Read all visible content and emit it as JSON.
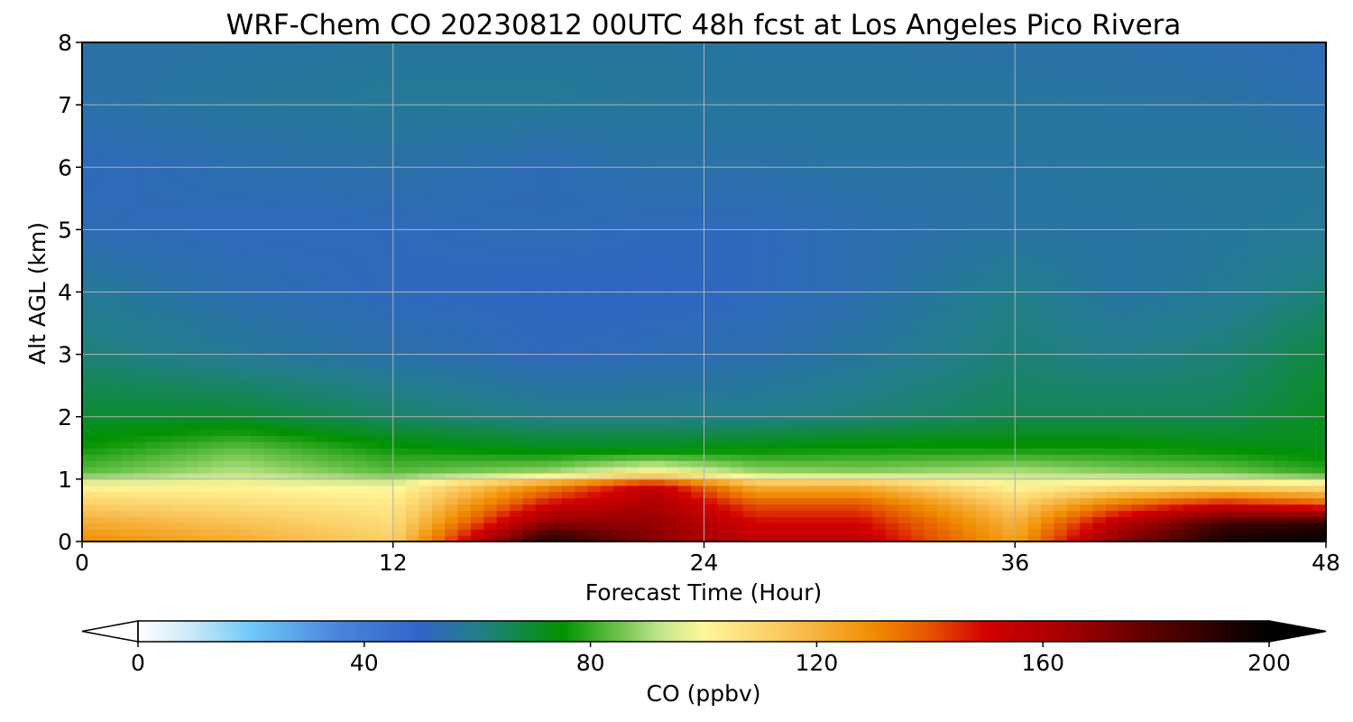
{
  "chart_data": {
    "type": "heatmap",
    "title": "WRF-Chem CO  20230812 00UTC 48h fcst at Los Angeles Pico Rivera",
    "xlabel": "Forecast Time (Hour)",
    "ylabel": "Alt AGL (km)",
    "xlim": [
      0,
      48
    ],
    "ylim": [
      0,
      8
    ],
    "x_ticks": [
      0,
      12,
      24,
      36,
      48
    ],
    "y_ticks": [
      0,
      1,
      2,
      3,
      4,
      5,
      6,
      7,
      8
    ],
    "grid": true,
    "x": [
      0,
      6,
      12,
      18,
      22,
      26,
      30,
      36,
      40,
      44,
      48
    ],
    "y": [
      0,
      0.3,
      0.6,
      0.9,
      1.1,
      1.5,
      2.0,
      3.0,
      4.0,
      5.0,
      6.0,
      7.0,
      8.0
    ],
    "z": [
      [
        130,
        122,
        112,
        195,
        170,
        155,
        155,
        125,
        170,
        195,
        200
      ],
      [
        122,
        116,
        108,
        170,
        168,
        150,
        150,
        120,
        158,
        185,
        190
      ],
      [
        112,
        108,
        104,
        150,
        162,
        140,
        140,
        112,
        135,
        150,
        140
      ],
      [
        100,
        100,
        98,
        130,
        155,
        120,
        120,
        100,
        105,
        108,
        105
      ],
      [
        84,
        92,
        84,
        90,
        102,
        90,
        88,
        92,
        88,
        86,
        80
      ],
      [
        76,
        84,
        76,
        72,
        72,
        74,
        76,
        76,
        76,
        74,
        72
      ],
      [
        70,
        70,
        64,
        60,
        60,
        60,
        62,
        66,
        66,
        66,
        72
      ],
      [
        62,
        58,
        55,
        52,
        53,
        54,
        57,
        62,
        60,
        62,
        68
      ],
      [
        58,
        54,
        52,
        51,
        51,
        52,
        54,
        60,
        56,
        58,
        62
      ],
      [
        53,
        52,
        52,
        53,
        52,
        52,
        54,
        56,
        56,
        57,
        58
      ],
      [
        52,
        54,
        55,
        53,
        55,
        55,
        56,
        56,
        57,
        57,
        57
      ],
      [
        55,
        57,
        58,
        58,
        57,
        57,
        57,
        57,
        56,
        56,
        54
      ],
      [
        55,
        56,
        57,
        57,
        57,
        56,
        56,
        55,
        55,
        54,
        53
      ]
    ],
    "colorbar": {
      "label": "CO  (ppbv)",
      "min": 0,
      "max": 200,
      "ticks": [
        0,
        40,
        80,
        120,
        160,
        200
      ],
      "extend": "both",
      "colors": [
        {
          "v": 0,
          "c": "#ffffff"
        },
        {
          "v": 10,
          "c": "#c8e6f8"
        },
        {
          "v": 20,
          "c": "#6ec8f7"
        },
        {
          "v": 35,
          "c": "#4a86dd"
        },
        {
          "v": 50,
          "c": "#3264c8"
        },
        {
          "v": 60,
          "c": "#227f8a"
        },
        {
          "v": 75,
          "c": "#009200"
        },
        {
          "v": 85,
          "c": "#6cc24a"
        },
        {
          "v": 92,
          "c": "#bfe38a"
        },
        {
          "v": 100,
          "c": "#fff799"
        },
        {
          "v": 115,
          "c": "#f9c45a"
        },
        {
          "v": 130,
          "c": "#f08c00"
        },
        {
          "v": 140,
          "c": "#e55400"
        },
        {
          "v": 150,
          "c": "#d20000"
        },
        {
          "v": 165,
          "c": "#a00000"
        },
        {
          "v": 180,
          "c": "#5a0000"
        },
        {
          "v": 200,
          "c": "#000000"
        }
      ]
    }
  }
}
